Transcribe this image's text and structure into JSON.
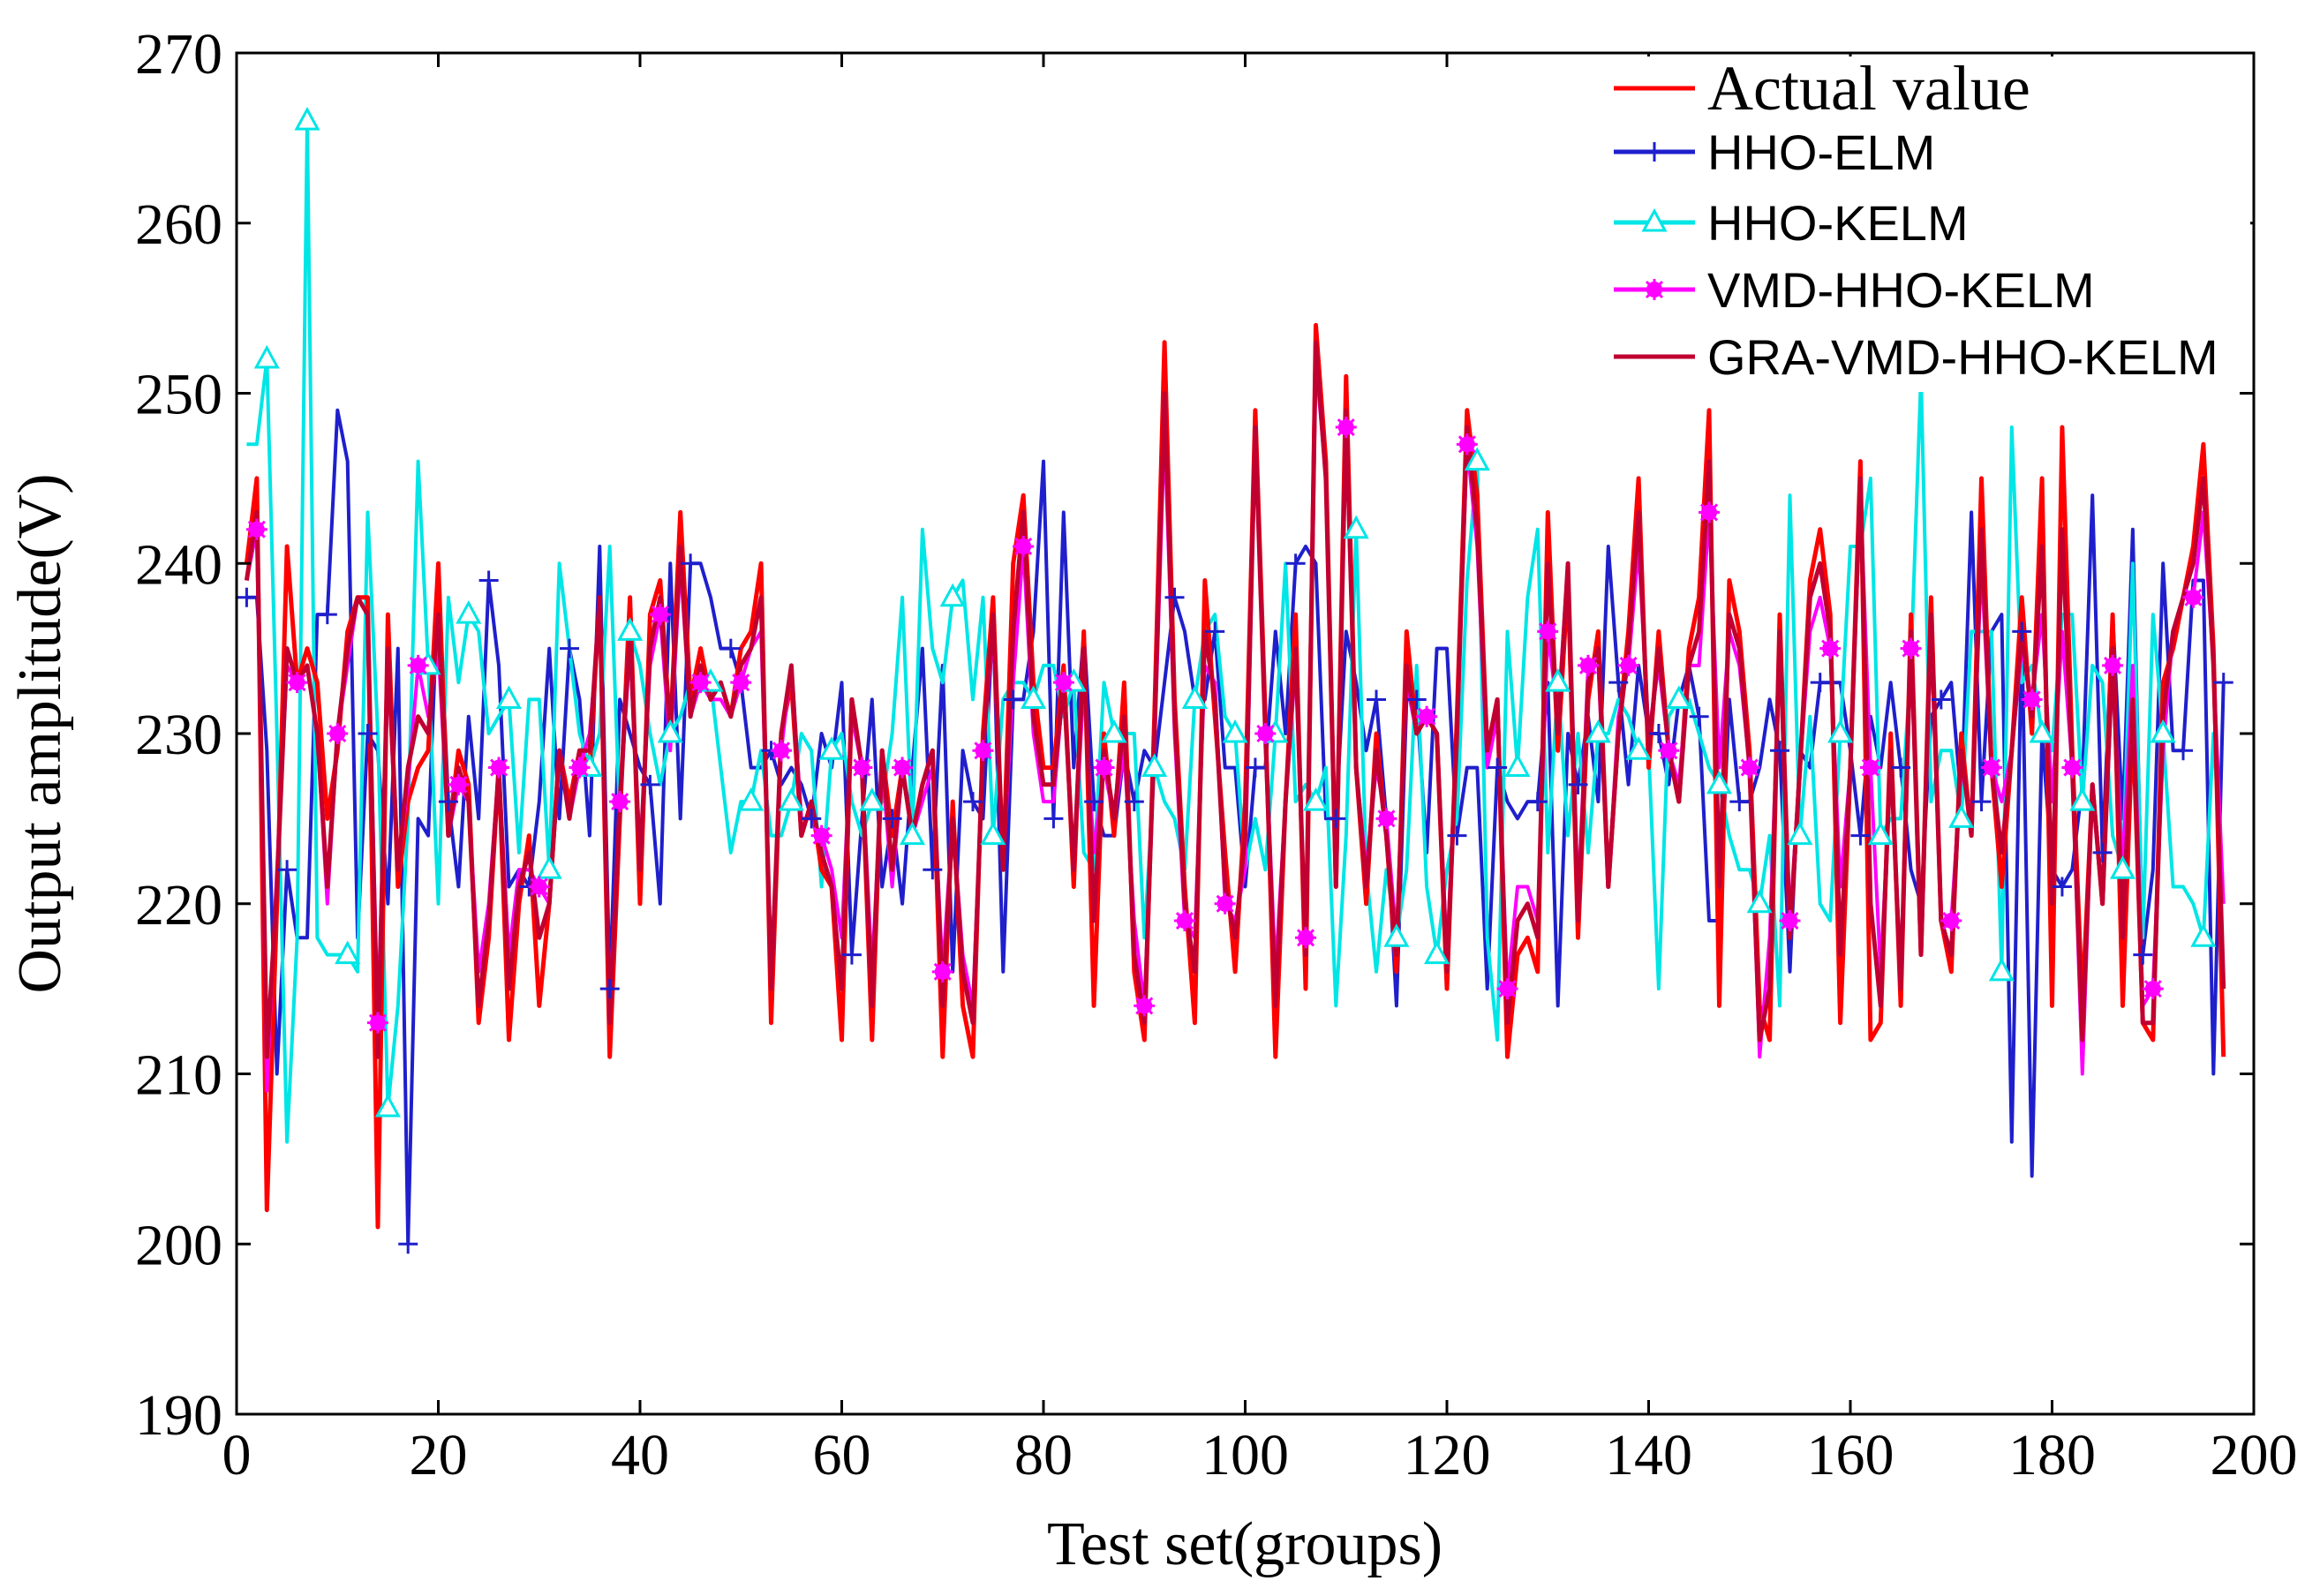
{
  "chart_data": {
    "type": "line",
    "title": "",
    "xlabel": "Test set(groups)",
    "ylabel": "Output amplitude(V)",
    "xlim": [
      0,
      200
    ],
    "ylim": [
      190,
      270
    ],
    "xticks": [
      "0",
      "20",
      "40",
      "60",
      "80",
      "100",
      "120",
      "140",
      "160",
      "180",
      "200"
    ],
    "yticks": [
      "190",
      "200",
      "210",
      "220",
      "230",
      "240",
      "250",
      "260",
      "270"
    ],
    "grid": false,
    "legend_position": "top-right",
    "x": [
      1,
      2,
      3,
      4,
      5,
      6,
      7,
      8,
      9,
      10,
      11,
      12,
      13,
      14,
      15,
      16,
      17,
      18,
      19,
      20,
      21,
      22,
      23,
      24,
      25,
      26,
      27,
      28,
      29,
      30,
      31,
      32,
      33,
      34,
      35,
      36,
      37,
      38,
      39,
      40,
      41,
      42,
      43,
      44,
      45,
      46,
      47,
      48,
      49,
      50,
      51,
      52,
      53,
      54,
      55,
      56,
      57,
      58,
      59,
      60,
      61,
      62,
      63,
      64,
      65,
      66,
      67,
      68,
      69,
      70,
      71,
      72,
      73,
      74,
      75,
      76,
      77,
      78,
      79,
      80,
      81,
      82,
      83,
      84,
      85,
      86,
      87,
      88,
      89,
      90,
      91,
      92,
      93,
      94,
      95,
      96,
      97,
      98,
      99,
      100,
      101,
      102,
      103,
      104,
      105,
      106,
      107,
      108,
      109,
      110,
      111,
      112,
      113,
      114,
      115,
      116,
      117,
      118,
      119,
      120,
      121,
      122,
      123,
      124,
      125,
      126,
      127,
      128,
      129,
      130,
      131,
      132,
      133,
      134,
      135,
      136,
      137,
      138,
      139,
      140,
      141,
      142,
      143,
      144,
      145,
      146,
      147,
      148,
      149,
      150,
      151,
      152,
      153,
      154,
      155,
      156,
      157,
      158,
      159,
      160,
      161,
      162,
      163,
      164,
      165,
      166,
      167,
      168,
      169,
      170,
      171,
      172,
      173,
      174,
      175,
      176,
      177,
      178,
      179,
      180,
      181,
      182,
      183,
      184,
      185,
      186,
      187,
      188,
      189,
      190,
      191,
      192,
      193,
      194,
      195,
      196,
      197
    ],
    "series": [
      {
        "name": "Actual value",
        "color": "#ff0000",
        "marker": "none",
        "values": [
          240,
          245,
          202,
          220,
          241,
          233,
          235,
          233,
          225,
          229,
          236,
          238,
          238,
          201,
          237,
          221,
          226,
          228,
          229,
          240,
          224,
          229,
          227,
          213,
          218,
          228,
          212,
          220,
          224,
          214,
          220,
          229,
          226,
          229,
          228,
          238,
          211,
          225,
          238,
          220,
          237,
          239,
          230,
          243,
          232,
          235,
          232,
          233,
          231,
          235,
          236,
          240,
          213,
          230,
          233,
          224,
          226,
          222,
          221,
          212,
          232,
          228,
          212,
          229,
          224,
          228,
          224,
          227,
          229,
          211,
          226,
          214,
          211,
          230,
          238,
          222,
          240,
          244,
          233,
          228,
          228,
          234,
          221,
          236,
          214,
          230,
          224,
          233,
          216,
          212,
          231,
          253,
          232,
          221,
          213,
          239,
          231,
          223,
          216,
          226,
          249,
          231,
          211,
          226,
          237,
          215,
          254,
          246,
          221,
          251,
          228,
          220,
          230,
          224,
          216,
          236,
          230,
          231,
          230,
          215,
          231,
          249,
          244,
          229,
          232,
          211,
          217,
          218,
          216,
          243,
          229,
          239,
          218,
          232,
          236,
          221,
          230,
          236,
          245,
          228,
          236,
          229,
          226,
          235,
          238,
          249,
          214,
          239,
          236,
          229,
          214,
          212,
          237,
          218,
          228,
          239,
          242,
          237,
          213,
          228,
          246,
          212,
          213,
          230,
          214,
          237,
          217,
          238,
          219,
          216,
          230,
          224,
          245,
          228,
          221,
          229,
          238,
          230,
          245,
          214,
          248,
          229,
          214,
          227,
          220,
          237,
          214,
          231,
          213,
          212,
          233,
          235,
          238,
          241,
          247,
          235,
          211
        ]
      },
      {
        "name": "HHO-ELM",
        "color": "#1f1fcc",
        "marker": "plus",
        "values": [
          238,
          238,
          229,
          210,
          222,
          218,
          218,
          237,
          237,
          249,
          246,
          218,
          230,
          229,
          220,
          235,
          200,
          225,
          224,
          239,
          226,
          221,
          231,
          225,
          239,
          234,
          221,
          222,
          221,
          226,
          235,
          225,
          235,
          232,
          224,
          241,
          215,
          232,
          230,
          228,
          227,
          220,
          240,
          225,
          240,
          240,
          238,
          235,
          235,
          233,
          228,
          228,
          229,
          227,
          228,
          227,
          225,
          230,
          228,
          233,
          217,
          225,
          232,
          221,
          225,
          220,
          228,
          235,
          222,
          234,
          216,
          229,
          226,
          225,
          237,
          216,
          232,
          232,
          236,
          246,
          225,
          243,
          228,
          236,
          226,
          224,
          224,
          229,
          226,
          229,
          228,
          233,
          238,
          236,
          232,
          232,
          236,
          228,
          228,
          221,
          228,
          228,
          236,
          230,
          240,
          241,
          240,
          225,
          225,
          236,
          233,
          229,
          232,
          225,
          214,
          232,
          232,
          223,
          235,
          235,
          224,
          228,
          228,
          215,
          228,
          226,
          225,
          226,
          226,
          233,
          214,
          230,
          227,
          231,
          226,
          241,
          233,
          227,
          234,
          230,
          230,
          227,
          232,
          234,
          231,
          219,
          219,
          232,
          226,
          226,
          228,
          232,
          229,
          216,
          229,
          228,
          233,
          233,
          233,
          229,
          224,
          231,
          228,
          233,
          228,
          222,
          220,
          231,
          232,
          233,
          226,
          243,
          226,
          236,
          237,
          206,
          236,
          204,
          230,
          222,
          221,
          222,
          227,
          244,
          223,
          237,
          225,
          242,
          217,
          222,
          240,
          229,
          229,
          239,
          239,
          210,
          233
        ]
      },
      {
        "name": "HHO-KELM",
        "color": "#00e5e5",
        "marker": "triangle",
        "values": [
          247,
          247,
          252,
          230,
          206,
          218,
          266,
          218,
          217,
          217,
          217,
          216,
          243,
          230,
          208,
          214,
          225,
          246,
          234,
          220,
          238,
          233,
          237,
          236,
          230,
          231,
          232,
          223,
          232,
          232,
          222,
          240,
          235,
          230,
          228,
          230,
          241,
          225,
          236,
          234,
          230,
          227,
          230,
          231,
          233,
          233,
          233,
          228,
          223,
          226,
          226,
          229,
          224,
          224,
          226,
          230,
          229,
          221,
          229,
          230,
          226,
          224,
          226,
          226,
          230,
          238,
          224,
          242,
          235,
          233,
          238,
          239,
          232,
          238,
          224,
          232,
          233,
          233,
          232,
          234,
          234,
          231,
          233,
          223,
          222,
          233,
          230,
          230,
          230,
          218,
          228,
          226,
          225,
          222,
          232,
          236,
          237,
          231,
          230,
          222,
          225,
          222,
          230,
          240,
          226,
          227,
          226,
          228,
          214,
          224,
          242,
          222,
          216,
          222,
          218,
          222,
          234,
          221,
          217,
          222,
          225,
          239,
          246,
          218,
          212,
          236,
          228,
          238,
          242,
          223,
          233,
          224,
          230,
          223,
          230,
          230,
          232,
          231,
          229,
          229,
          215,
          231,
          232,
          232,
          230,
          228,
          227,
          224,
          222,
          222,
          220,
          224,
          214,
          244,
          224,
          231,
          220,
          219,
          230,
          241,
          241,
          245,
          224,
          225,
          225,
          234,
          251,
          226,
          229,
          229,
          225,
          236,
          236,
          236,
          216,
          248,
          233,
          234,
          230,
          229,
          237,
          237,
          226,
          234,
          233,
          224,
          222,
          240,
          218,
          237,
          230,
          221,
          221,
          220,
          218,
          230,
          220
        ]
      },
      {
        "name": "VMD-HHO-KELM",
        "color": "#ff00ff",
        "marker": "star",
        "values": [
          239,
          242,
          209,
          222,
          234,
          233,
          234,
          230,
          220,
          230,
          234,
          238,
          237,
          213,
          234,
          222,
          227,
          234,
          231,
          235,
          224,
          227,
          226,
          216,
          220,
          228,
          217,
          222,
          222,
          221,
          220,
          229,
          225,
          228,
          230,
          237,
          214,
          226,
          235,
          223,
          234,
          237,
          229,
          240,
          231,
          233,
          232,
          232,
          231,
          233,
          235,
          236,
          216,
          229,
          234,
          225,
          225,
          224,
          222,
          218,
          231,
          228,
          216,
          228,
          221,
          228,
          224,
          226,
          228,
          216,
          225,
          217,
          214,
          229,
          236,
          222,
          233,
          241,
          230,
          226,
          226,
          233,
          222,
          233,
          223,
          228,
          225,
          229,
          219,
          214,
          229,
          248,
          230,
          219,
          218,
          234,
          233,
          220,
          219,
          222,
          248,
          230,
          216,
          226,
          234,
          218,
          252,
          245,
          222,
          248,
          228,
          222,
          228,
          225,
          218,
          233,
          230,
          231,
          230,
          217,
          230,
          247,
          241,
          228,
          231,
          215,
          221,
          221,
          219,
          236,
          231,
          240,
          220,
          234,
          234,
          221,
          231,
          234,
          241,
          230,
          234,
          229,
          227,
          234,
          234,
          243,
          228,
          236,
          234,
          228,
          211,
          218,
          235,
          219,
          228,
          236,
          238,
          235,
          221,
          228,
          244,
          228,
          216,
          228,
          216,
          235,
          218,
          236,
          219,
          219,
          228,
          225,
          240,
          228,
          226,
          229,
          235,
          232,
          237,
          226,
          236,
          228,
          210,
          227,
          220,
          234,
          222,
          234,
          214,
          215,
          229,
          236,
          238,
          238,
          243,
          234,
          220
        ]
      },
      {
        "name": "GRA-VMD-HHO-KELM",
        "color": "#c00030",
        "marker": "none",
        "values": [
          239,
          243,
          211,
          221,
          235,
          233,
          234,
          230,
          221,
          230,
          235,
          238,
          237,
          211,
          235,
          222,
          228,
          231,
          230,
          237,
          224,
          228,
          226,
          214,
          219,
          228,
          215,
          221,
          223,
          218,
          220,
          229,
          225,
          229,
          229,
          238,
          213,
          226,
          236,
          222,
          235,
          238,
          230,
          241,
          231,
          234,
          232,
          233,
          231,
          234,
          235,
          238,
          215,
          230,
          234,
          224,
          226,
          223,
          221,
          215,
          232,
          228,
          214,
          229,
          222,
          228,
          224,
          227,
          229,
          214,
          225,
          216,
          213,
          229,
          237,
          222,
          236,
          243,
          231,
          227,
          227,
          233,
          222,
          235,
          219,
          229,
          225,
          231,
          217,
          213,
          230,
          250,
          231,
          220,
          216,
          236,
          232,
          221,
          218,
          224,
          248,
          230,
          214,
          226,
          235,
          217,
          253,
          245,
          221,
          249,
          228,
          221,
          229,
          224,
          217,
          234,
          230,
          231,
          230,
          216,
          230,
          248,
          242,
          229,
          232,
          213,
          219,
          220,
          218,
          240,
          230,
          240,
          219,
          233,
          235,
          221,
          230,
          235,
          243,
          229,
          235,
          229,
          226,
          234,
          236,
          246,
          221,
          237,
          235,
          228,
          212,
          215,
          236,
          218,
          228,
          238,
          240,
          236,
          217,
          228,
          245,
          220,
          214,
          229,
          215,
          236,
          217,
          237,
          219,
          217,
          229,
          224,
          242,
          228,
          223,
          229,
          236,
          231,
          241,
          220,
          242,
          228,
          212,
          227,
          220,
          235,
          218,
          232,
          213,
          213,
          231,
          236,
          238,
          240,
          245,
          234,
          215
        ]
      }
    ]
  }
}
